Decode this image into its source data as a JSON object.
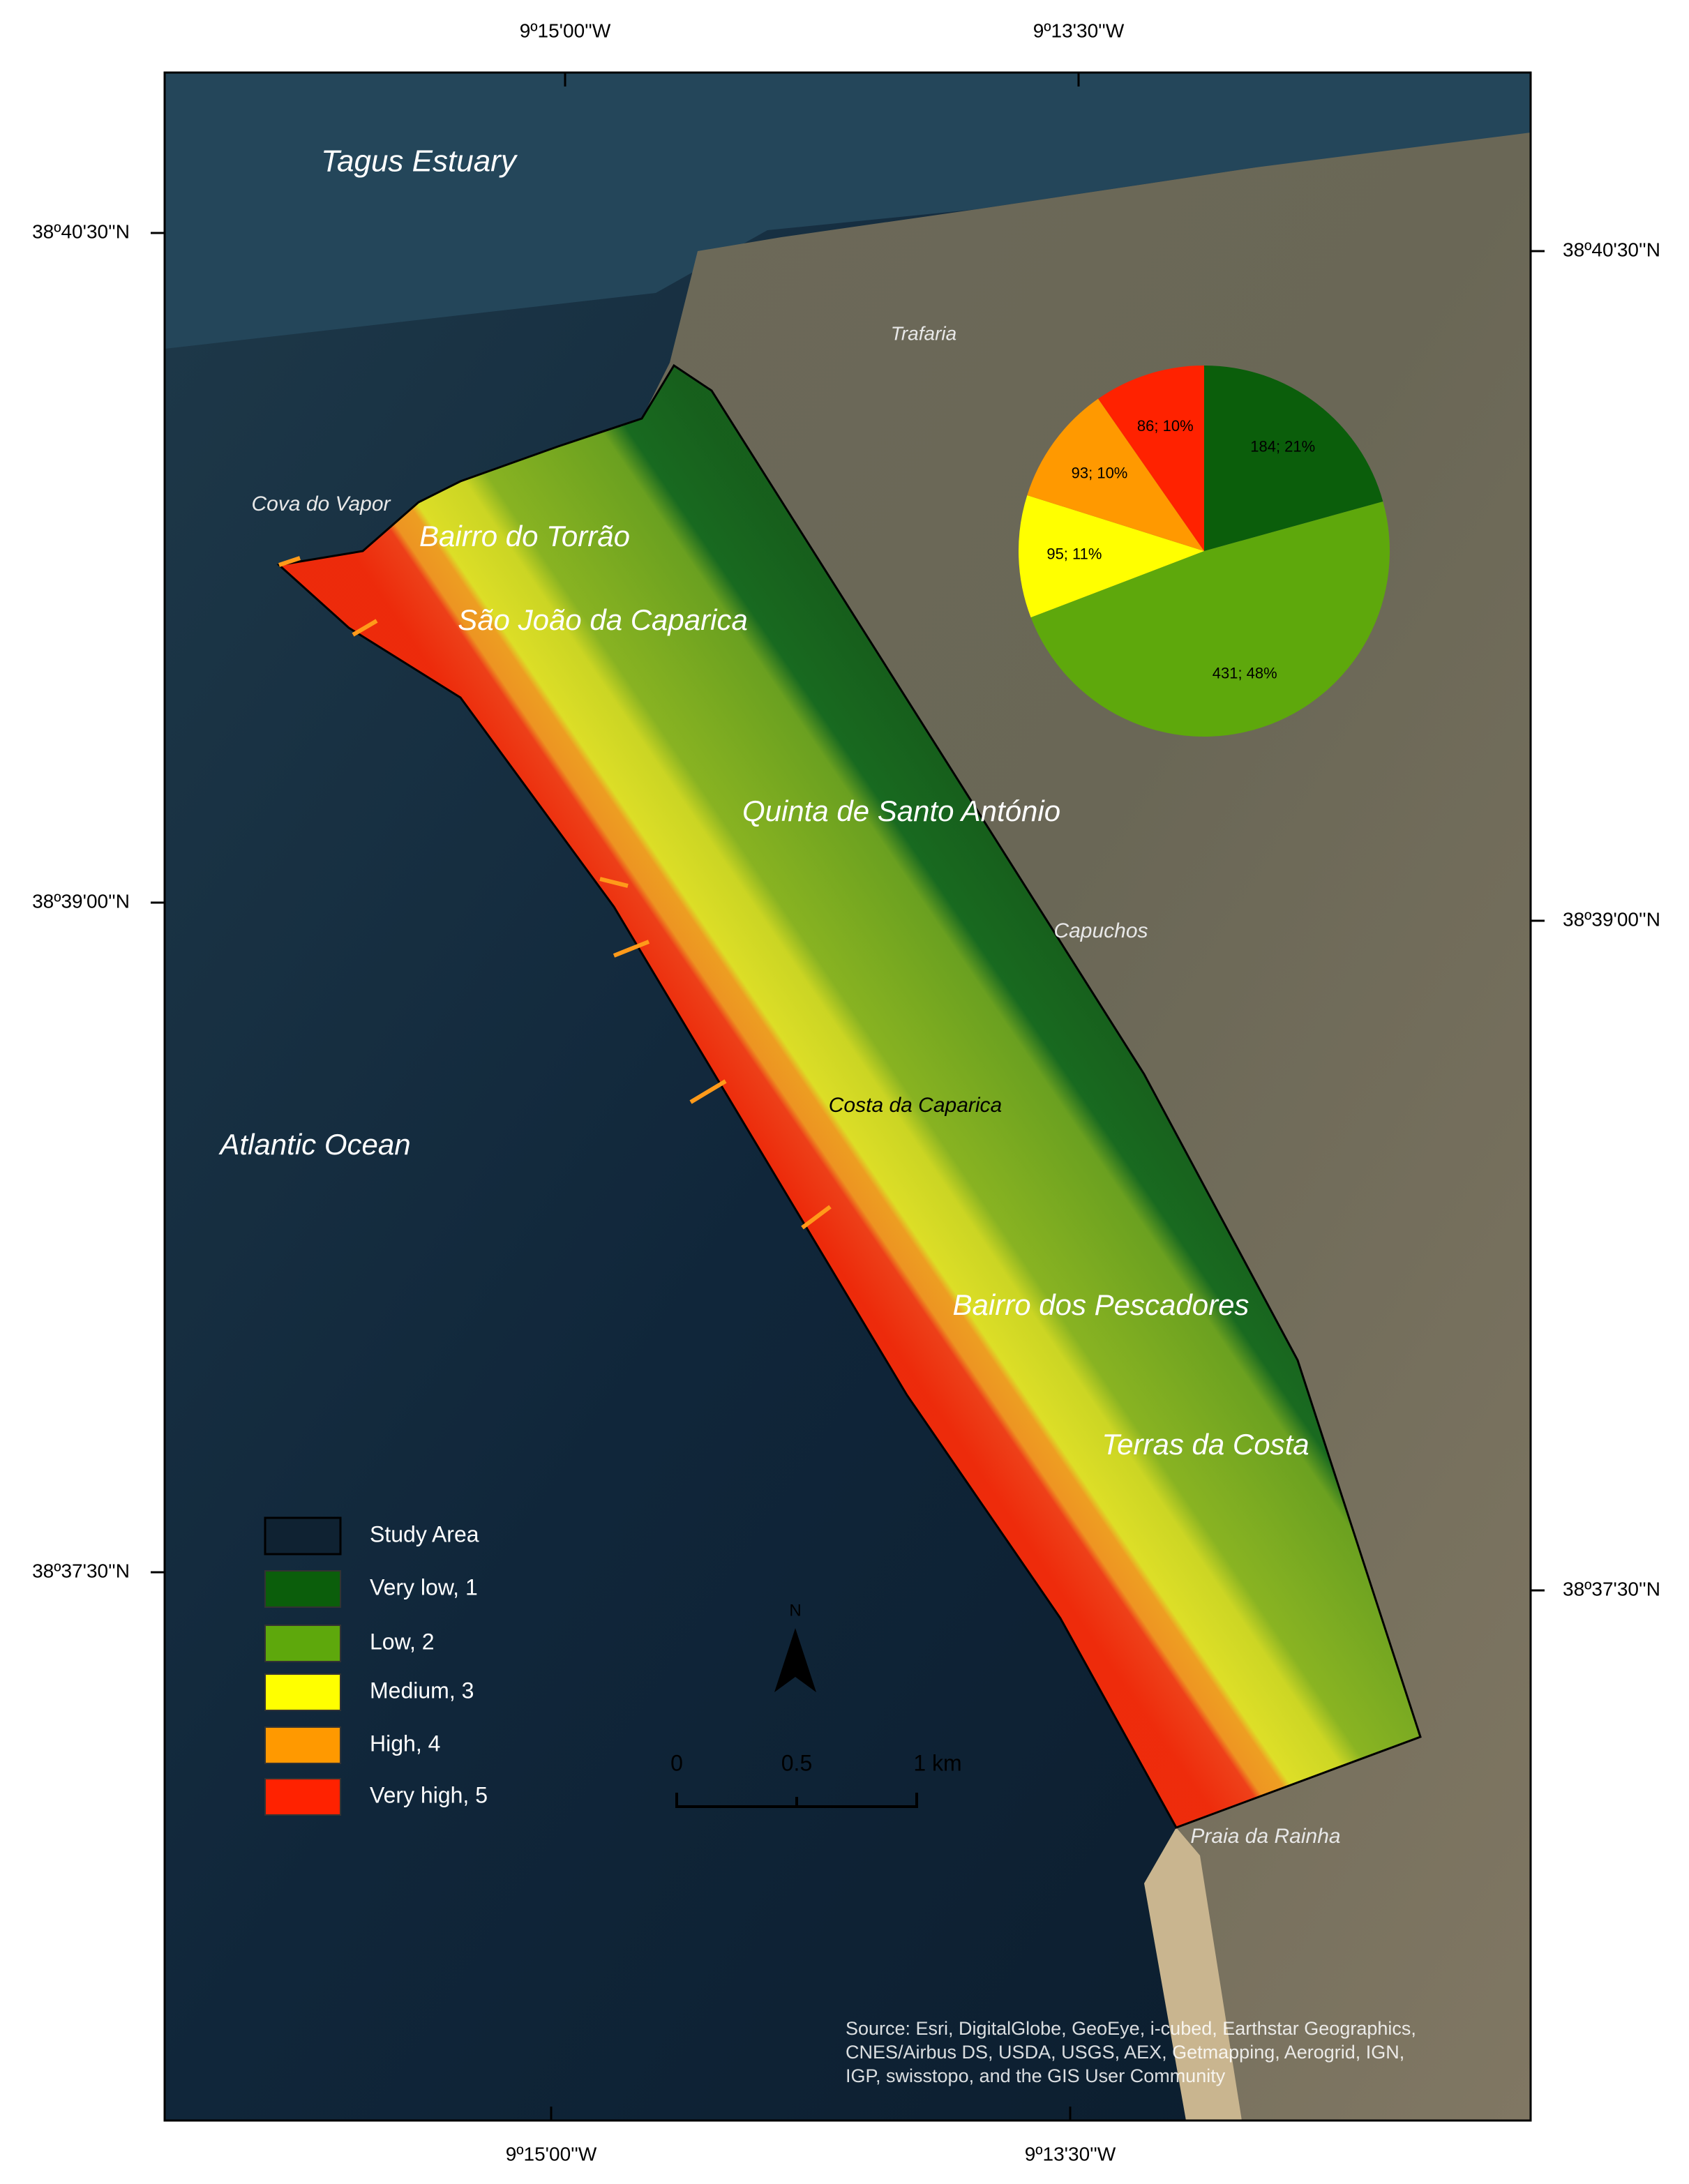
{
  "map": {
    "top_ticks": [
      "9º15'00''W",
      "9º13'30''W"
    ],
    "bottom_ticks": [
      "9º15'00''W",
      "9º13'30''W"
    ],
    "left_ticks": [
      "38º40'30''N",
      "38º39'00''N",
      "38º37'30''N"
    ],
    "right_ticks": [
      "38º40'30''N",
      "38º39'00''N",
      "38º37'30''N"
    ],
    "places": [
      "Tagus Estuary",
      "Trafaria",
      "Cova do Vapor",
      "Bairro do Torrão",
      "São João da Caparica",
      "Quinta de Santo António",
      "Capuchos",
      "Costa da Caparica",
      "Atlantic Ocean",
      "Bairro dos Pescadores",
      "Terras da Costa",
      "Praia da Rainha"
    ],
    "legend_study_area": "Study Area",
    "north": "N",
    "scale_labels": [
      "0",
      "0.5",
      "1 km"
    ],
    "source": [
      "Source: Esri, DigitalGlobe, GeoEye, i-cubed, Earthstar Geographics,",
      "CNES/Airbus DS, USDA, USGS, AEX, Getmapping, Aerogrid, IGN,",
      "IGP, swisstopo, and the GIS User Community"
    ]
  },
  "chart_data": {
    "type": "pie",
    "categories": [
      "Very low, 1",
      "Low, 2",
      "Medium, 3",
      "High, 4",
      "Very high, 5"
    ],
    "values": [
      184,
      431,
      95,
      93,
      86
    ],
    "value_labels": [
      "184; 21%",
      "431; 48%",
      "95; 11%",
      "93; 10%",
      "86; 10%"
    ],
    "colors": [
      "#0b5e0b",
      "#5ea80c",
      "#ffff00",
      "#ff9900",
      "#ff2200"
    ]
  }
}
